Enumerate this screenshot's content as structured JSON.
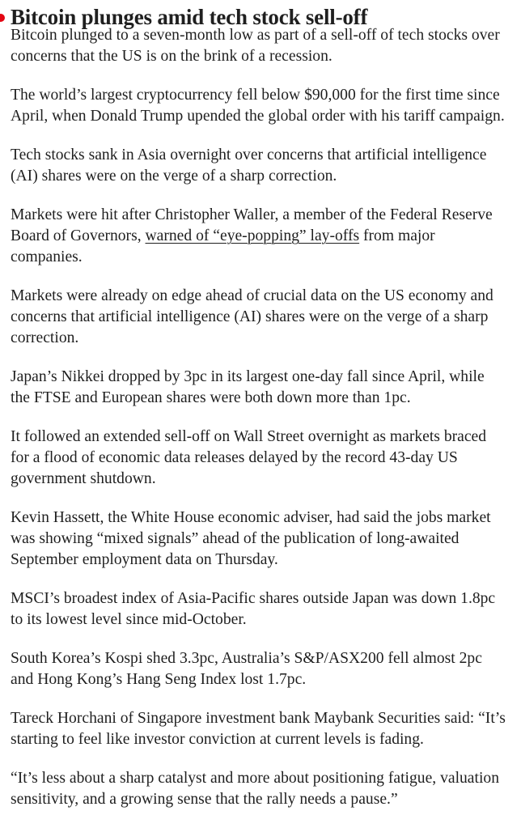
{
  "article": {
    "accent_color": "#e30613",
    "headline": "Bitcoin plunges amid tech stock sell-off",
    "paragraphs": [
      "Bitcoin plunged to a seven-month low as part of a sell-off of tech stocks over concerns that the US is on the brink of a recession.",
      "The world’s largest cryptocurrency fell below $90,000 for the first time since April, when Donald Trump upended the global order with his tariff campaign.",
      "Tech stocks sank in Asia overnight over concerns that artificial intelligence (AI) shares were on the verge of a sharp correction.",
      {
        "before": "Markets were hit after Christopher Waller, a member of the Federal Reserve Board of Governors, ",
        "link": "warned of “eye-popping” lay-offs",
        "after": " from major companies."
      },
      "Markets were already on edge ahead of crucial data on the US economy and concerns that artificial intelligence (AI) shares were on the verge of a sharp correction.",
      "Japan’s Nikkei dropped by 3pc in its largest one-day fall since April, while the FTSE and European shares were both down more than 1pc.",
      "It followed an extended sell-off on Wall Street overnight as markets braced for a flood of economic data releases delayed by the record 43-day US government shutdown.",
      "Kevin Hassett, the White House economic adviser, had said the jobs market was showing “mixed signals” ahead of the publication of long-awaited September employment data on Thursday.",
      "MSCI’s broadest index of Asia-Pacific shares outside Japan was down 1.8pc to its lowest level since mid-October.",
      "South Korea’s Kospi shed 3.3pc, Australia’s S&P/ASX200 fell almost 2pc and Hong Kong’s Hang Seng Index lost 1.7pc.",
      "Tareck Horchani of Singapore investment bank Maybank Securities said: “It’s starting to feel like investor conviction at current levels is fading.",
      "“It’s less about a sharp catalyst and more about positioning fatigue, valuation sensitivity, and a growing sense that the rally needs a pause.”"
    ]
  }
}
